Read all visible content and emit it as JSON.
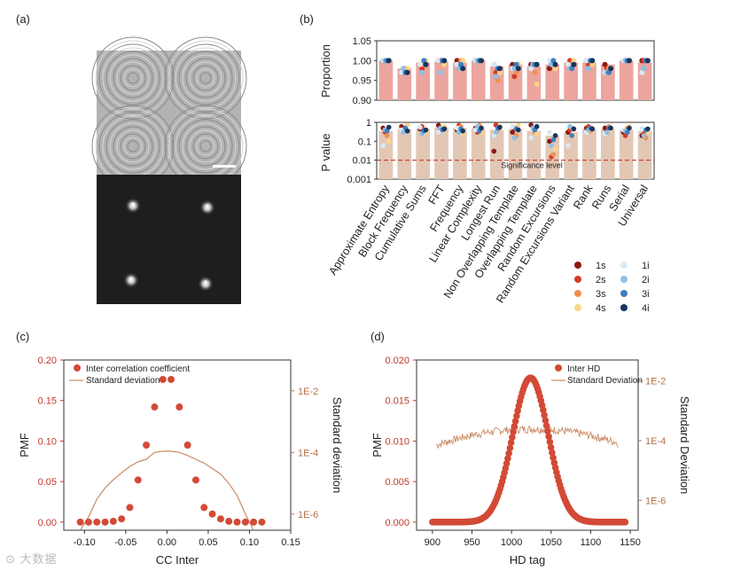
{
  "panels": {
    "a": "(a)",
    "b": "(b)",
    "c": "(c)",
    "d": "(d)"
  },
  "panel_a": {
    "scale_bar": true
  },
  "colors": {
    "bar": "#eba59e",
    "bar_pvalue": "#e3c7b5",
    "sig_line": "#c0392b",
    "c_points": "#d24a36",
    "c_line": "#c98a62",
    "d_points": "#d24a36",
    "d_line": "#c98a62",
    "axis_c_left": "#c0392b",
    "axis_c_right": "#b5714c"
  },
  "chart_data": [
    {
      "id": "b-proportion",
      "type": "bar",
      "ylabel": "Proportion",
      "ylim": [
        0.9,
        1.05
      ],
      "yticks": [
        "0.90",
        "0.95",
        "1.00",
        "1.05"
      ],
      "categories": [
        "Approximate Entropy",
        "Block Frequency",
        "Cumulative Sums",
        "FFT",
        "Frequency",
        "Linear Complexity",
        "Longest Run",
        "Non Overlapping Template",
        "Overlapping Template",
        "Random Excursions",
        "Random Excursions Variant",
        "Rank",
        "Runs",
        "Serial",
        "Universal"
      ],
      "values": [
        1.0,
        0.98,
        0.995,
        0.997,
        0.995,
        1.0,
        0.985,
        0.99,
        0.985,
        0.99,
        0.995,
        0.995,
        0.99,
        1.0,
        0.995
      ],
      "series": [
        {
          "name": "1s",
          "values": [
            1.0,
            0.97,
            0.99,
            1.0,
            1.0,
            1.0,
            0.99,
            0.99,
            0.99,
            0.98,
            0.99,
            1.0,
            0.99,
            1.0,
            1.0
          ]
        },
        {
          "name": "2s",
          "values": [
            1.0,
            0.97,
            0.98,
            1.0,
            0.99,
            1.0,
            0.97,
            0.96,
            0.99,
            0.99,
            1.0,
            0.99,
            0.98,
            1.0,
            1.0
          ]
        },
        {
          "name": "3s",
          "values": [
            1.0,
            0.98,
            0.99,
            1.0,
            1.0,
            1.0,
            0.95,
            0.97,
            0.97,
            0.99,
            0.99,
            1.0,
            0.98,
            1.0,
            1.0
          ]
        },
        {
          "name": "4s",
          "values": [
            1.0,
            0.98,
            1.0,
            0.99,
            1.0,
            1.0,
            0.97,
            0.99,
            0.94,
            0.98,
            1.0,
            0.99,
            0.98,
            1.0,
            1.0
          ]
        },
        {
          "name": "1i",
          "values": [
            1.0,
            0.97,
            0.99,
            1.0,
            0.99,
            1.0,
            0.99,
            0.98,
            0.98,
            1.0,
            0.99,
            1.0,
            0.97,
            1.0,
            0.97
          ]
        },
        {
          "name": "2i",
          "values": [
            1.0,
            0.98,
            0.97,
            0.97,
            0.98,
            1.0,
            0.96,
            0.98,
            0.99,
            0.99,
            0.98,
            0.98,
            0.97,
            1.0,
            0.98
          ]
        },
        {
          "name": "3i",
          "values": [
            1.0,
            0.97,
            1.0,
            1.0,
            0.99,
            1.0,
            0.98,
            0.99,
            0.99,
            1.0,
            0.98,
            1.0,
            0.97,
            1.0,
            1.0
          ]
        },
        {
          "name": "4i",
          "values": [
            1.0,
            0.97,
            0.99,
            1.0,
            0.98,
            1.0,
            0.98,
            0.98,
            0.99,
            0.99,
            0.99,
            1.0,
            0.98,
            1.0,
            1.0
          ]
        }
      ]
    },
    {
      "id": "b-pvalue",
      "type": "bar",
      "ylabel": "P value",
      "yscale": "log",
      "ylim": [
        0.001,
        1
      ],
      "yticks": [
        "0.001",
        "0.01",
        "0.1",
        "1"
      ],
      "categories": [
        "Approximate Entropy",
        "Block Frequency",
        "Cumulative Sums",
        "FFT",
        "Frequency",
        "Linear Complexity",
        "Longest Run",
        "Non Overlapping Template",
        "Overlapping Template",
        "Random Excursions",
        "Random Excursions Variant",
        "Rank",
        "Runs",
        "Serial",
        "Universal"
      ],
      "values": [
        0.35,
        0.45,
        0.45,
        0.55,
        0.5,
        0.45,
        0.4,
        0.45,
        0.35,
        0.2,
        0.3,
        0.45,
        0.45,
        0.4,
        0.35
      ],
      "significance": {
        "value": 0.01,
        "label": "Significance level"
      },
      "series": [
        {
          "name": "1s",
          "values": [
            0.5,
            0.6,
            0.45,
            0.7,
            0.4,
            0.5,
            0.03,
            0.3,
            0.9,
            0.1,
            0.3,
            0.5,
            0.5,
            0.3,
            0.2
          ]
        },
        {
          "name": "2s",
          "values": [
            0.3,
            0.35,
            0.6,
            0.4,
            0.7,
            0.3,
            0.9,
            0.5,
            0.5,
            0.015,
            0.4,
            0.6,
            0.3,
            0.2,
            0.25
          ]
        },
        {
          "name": "3s",
          "values": [
            0.2,
            0.5,
            0.35,
            0.5,
            0.6,
            0.7,
            0.4,
            0.2,
            0.3,
            0.02,
            0.5,
            0.35,
            0.6,
            0.5,
            0.15
          ]
        },
        {
          "name": "4s",
          "values": [
            0.1,
            0.8,
            0.3,
            0.6,
            0.25,
            0.3,
            0.6,
            0.7,
            0.25,
            0.04,
            0.2,
            0.5,
            0.4,
            0.6,
            0.3
          ]
        },
        {
          "name": "1i",
          "values": [
            0.06,
            0.4,
            0.55,
            0.3,
            0.5,
            0.4,
            0.2,
            0.6,
            0.15,
            0.3,
            0.06,
            0.3,
            0.25,
            0.4,
            0.5
          ]
        },
        {
          "name": "2i",
          "values": [
            0.4,
            0.3,
            0.25,
            0.5,
            0.3,
            0.6,
            0.3,
            0.15,
            0.5,
            0.06,
            0.6,
            0.4,
            0.3,
            0.35,
            0.2
          ]
        },
        {
          "name": "3i",
          "values": [
            0.35,
            0.5,
            0.35,
            0.4,
            0.45,
            0.35,
            0.5,
            0.45,
            0.4,
            0.12,
            0.2,
            0.5,
            0.5,
            0.3,
            0.4
          ]
        },
        {
          "name": "4i",
          "values": [
            0.55,
            0.35,
            0.4,
            0.45,
            0.35,
            0.5,
            0.55,
            0.4,
            0.6,
            0.2,
            0.45,
            0.45,
            0.5,
            0.5,
            0.45
          ]
        }
      ],
      "legend": [
        {
          "name": "1s",
          "color": "#8b1a12"
        },
        {
          "name": "2s",
          "color": "#d63a2a"
        },
        {
          "name": "3s",
          "color": "#f09050"
        },
        {
          "name": "4s",
          "color": "#fbd58a"
        },
        {
          "name": "1i",
          "color": "#d8eaf7"
        },
        {
          "name": "2i",
          "color": "#8fbfe3"
        },
        {
          "name": "3i",
          "color": "#3f7fbf"
        },
        {
          "name": "4i",
          "color": "#16355f"
        }
      ]
    },
    {
      "id": "c",
      "type": "scatter",
      "xlabel": "CC Inter",
      "ylabel": "PMF",
      "y2label": "Standard deviation",
      "xlim": [
        -0.125,
        0.15
      ],
      "xticks": [
        "-0.10",
        "-0.05",
        "0.00",
        "0.05",
        "0.10",
        "0.15"
      ],
      "xtick_values": [
        -0.1,
        -0.05,
        0.0,
        0.05,
        0.1,
        0.15
      ],
      "ylim": [
        -0.01,
        0.2
      ],
      "yticks": [
        "0.00",
        "0.05",
        "0.10",
        "0.15",
        "0.20"
      ],
      "ytick_values": [
        0,
        0.05,
        0.1,
        0.15,
        0.2
      ],
      "y2scale": "log",
      "y2lim": [
        3e-07,
        0.1
      ],
      "y2ticks": [
        "1E-6",
        "1E-4",
        "1E-2"
      ],
      "y2tick_values": [
        1e-06,
        0.0001,
        0.01
      ],
      "legend": [
        "Inter correlation coefficient",
        "Standard deviation"
      ],
      "series": [
        {
          "name": "Inter correlation coefficient",
          "x": [
            -0.105,
            -0.095,
            -0.085,
            -0.075,
            -0.065,
            -0.055,
            -0.045,
            -0.035,
            -0.025,
            -0.015,
            -0.005,
            0.005,
            0.015,
            0.025,
            0.035,
            0.045,
            0.055,
            0.065,
            0.075,
            0.085,
            0.095,
            0.105,
            0.115
          ],
          "y": [
            0.0,
            0.0,
            0.0,
            0.0,
            0.001,
            0.004,
            0.018,
            0.052,
            0.095,
            0.142,
            0.176,
            0.176,
            0.142,
            0.095,
            0.052,
            0.018,
            0.01,
            0.004,
            0.001,
            0.0,
            0.0,
            0.0,
            0.0
          ]
        },
        {
          "name": "Standard deviation",
          "x": [
            -0.105,
            -0.095,
            -0.085,
            -0.075,
            -0.065,
            -0.055,
            -0.045,
            -0.035,
            -0.025,
            -0.015,
            -0.005,
            0.005,
            0.015,
            0.025,
            0.035,
            0.045,
            0.055,
            0.065,
            0.075,
            0.085,
            0.095,
            0.105
          ],
          "y": [
            2e-07,
            8e-07,
            3e-06,
            7e-06,
            1.3e-05,
            2.2e-05,
            3.5e-05,
            5e-05,
            6e-05,
            0.0001,
            0.00011,
            0.00011,
            0.0001,
            8e-05,
            6e-05,
            4.5e-05,
            3e-05,
            2e-05,
            1e-05,
            4e-06,
            1e-06,
            2e-07
          ]
        }
      ]
    },
    {
      "id": "d",
      "type": "scatter",
      "xlabel": "HD tag",
      "ylabel": "PMF",
      "y2label": "Standard Deviation",
      "xlim": [
        880,
        1160
      ],
      "xticks": [
        "900",
        "950",
        "1000",
        "1050",
        "1100",
        "1150"
      ],
      "xtick_values": [
        900,
        950,
        1000,
        1050,
        1100,
        1150
      ],
      "ylim": [
        -0.001,
        0.02
      ],
      "yticks": [
        "0.000",
        "0.005",
        "0.010",
        "0.015",
        "0.020"
      ],
      "ytick_values": [
        0,
        0.005,
        0.01,
        0.015,
        0.02
      ],
      "y2scale": "log",
      "y2lim": [
        1e-07,
        0.05
      ],
      "y2ticks": [
        "1E-6",
        "1E-4",
        "1E-2"
      ],
      "y2tick_values": [
        1e-06,
        0.0001,
        0.01
      ],
      "legend": [
        "Inter HD",
        "Standard Deviation"
      ],
      "gaussian": {
        "mean": 1024,
        "sd": 22.5,
        "peak": 0.0178,
        "xmin": 900,
        "xmax": 1145,
        "step": 1.4
      },
      "std_curve": {
        "peak": 0.00025,
        "mean": 1024,
        "sd": 75,
        "xmin": 905,
        "xmax": 1135
      }
    }
  ]
}
